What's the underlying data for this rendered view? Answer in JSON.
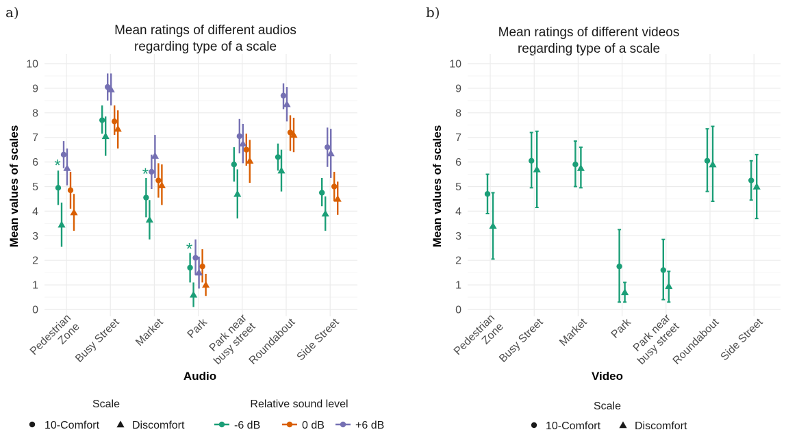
{
  "panel_labels": [
    "a)",
    "b)"
  ],
  "colors": {
    "-6 dB": "#1b9e77",
    "0 dB": "#d95f02",
    "+6 dB": "#7570b3",
    "single": "#1b9e77",
    "grid": "#ebebeb"
  },
  "chart_data": [
    {
      "type": "scatter",
      "title_line1": "Mean ratings of different audios",
      "title_line2": "regarding type of a scale",
      "xlabel": "Audio",
      "ylabel": "Mean values of scales",
      "ylim": [
        0,
        10
      ],
      "yticks": [
        "0",
        "1",
        "2",
        "3",
        "4",
        "5",
        "6",
        "7",
        "8",
        "9",
        "10"
      ],
      "categories": [
        [
          "Pedestrian",
          "Zone"
        ],
        [
          "Busy Street"
        ],
        [
          "Market"
        ],
        [
          "Park"
        ],
        [
          "Park near",
          "busy street"
        ],
        [
          "Roundabout"
        ],
        [
          "Side Street"
        ]
      ],
      "legend_scale_title": "Scale",
      "legend_scale_items": [
        "10-Comfort",
        "Discomfort"
      ],
      "legend_level_title": "Relative sound level",
      "legend_level_items": [
        "-6 dB",
        "0 dB",
        "+6 dB"
      ],
      "significance_marker": "*",
      "significance_categories": [
        0,
        2,
        3
      ],
      "points": [
        {
          "cat": 0,
          "level": "-6 dB",
          "scale": "10-Comfort",
          "mean": 4.95,
          "lo": 4.25,
          "hi": 5.65
        },
        {
          "cat": 0,
          "level": "-6 dB",
          "scale": "Discomfort",
          "mean": 3.45,
          "lo": 2.55,
          "hi": 4.35
        },
        {
          "cat": 0,
          "level": "0 dB",
          "scale": "10-Comfort",
          "mean": 4.85,
          "lo": 4.1,
          "hi": 5.6
        },
        {
          "cat": 0,
          "level": "0 dB",
          "scale": "Discomfort",
          "mean": 3.95,
          "lo": 3.2,
          "hi": 4.7
        },
        {
          "cat": 0,
          "level": "+6 dB",
          "scale": "10-Comfort",
          "mean": 6.3,
          "lo": 5.75,
          "hi": 6.85
        },
        {
          "cat": 0,
          "level": "+6 dB",
          "scale": "Discomfort",
          "mean": 5.75,
          "lo": 5.05,
          "hi": 6.55
        },
        {
          "cat": 1,
          "level": "-6 dB",
          "scale": "10-Comfort",
          "mean": 7.7,
          "lo": 7.15,
          "hi": 8.3
        },
        {
          "cat": 1,
          "level": "-6 dB",
          "scale": "Discomfort",
          "mean": 7.05,
          "lo": 6.25,
          "hi": 7.85
        },
        {
          "cat": 1,
          "level": "0 dB",
          "scale": "10-Comfort",
          "mean": 7.65,
          "lo": 7.1,
          "hi": 8.3
        },
        {
          "cat": 1,
          "level": "0 dB",
          "scale": "Discomfort",
          "mean": 7.35,
          "lo": 6.55,
          "hi": 8.1
        },
        {
          "cat": 1,
          "level": "+6 dB",
          "scale": "10-Comfort",
          "mean": 9.05,
          "lo": 8.5,
          "hi": 9.6
        },
        {
          "cat": 1,
          "level": "+6 dB",
          "scale": "Discomfort",
          "mean": 8.95,
          "lo": 8.3,
          "hi": 9.6
        },
        {
          "cat": 2,
          "level": "-6 dB",
          "scale": "10-Comfort",
          "mean": 4.55,
          "lo": 3.75,
          "hi": 5.35
        },
        {
          "cat": 2,
          "level": "-6 dB",
          "scale": "Discomfort",
          "mean": 3.65,
          "lo": 2.85,
          "hi": 4.45
        },
        {
          "cat": 2,
          "level": "0 dB",
          "scale": "10-Comfort",
          "mean": 5.25,
          "lo": 4.55,
          "hi": 5.95
        },
        {
          "cat": 2,
          "level": "0 dB",
          "scale": "Discomfort",
          "mean": 5.05,
          "lo": 4.25,
          "hi": 5.9
        },
        {
          "cat": 2,
          "level": "+6 dB",
          "scale": "10-Comfort",
          "mean": 5.6,
          "lo": 4.9,
          "hi": 6.3
        },
        {
          "cat": 2,
          "level": "+6 dB",
          "scale": "Discomfort",
          "mean": 6.25,
          "lo": 5.35,
          "hi": 7.1
        },
        {
          "cat": 3,
          "level": "-6 dB",
          "scale": "10-Comfort",
          "mean": 1.7,
          "lo": 1.1,
          "hi": 2.3
        },
        {
          "cat": 3,
          "level": "-6 dB",
          "scale": "Discomfort",
          "mean": 0.6,
          "lo": 0.1,
          "hi": 1.1
        },
        {
          "cat": 3,
          "level": "0 dB",
          "scale": "10-Comfort",
          "mean": 1.75,
          "lo": 1.1,
          "hi": 2.45
        },
        {
          "cat": 3,
          "level": "0 dB",
          "scale": "Discomfort",
          "mean": 1.0,
          "lo": 0.55,
          "hi": 1.45
        },
        {
          "cat": 3,
          "level": "+6 dB",
          "scale": "10-Comfort",
          "mean": 2.1,
          "lo": 1.4,
          "hi": 2.85
        },
        {
          "cat": 3,
          "level": "+6 dB",
          "scale": "Discomfort",
          "mean": 1.5,
          "lo": 0.85,
          "hi": 2.15
        },
        {
          "cat": 4,
          "level": "-6 dB",
          "scale": "10-Comfort",
          "mean": 5.9,
          "lo": 5.2,
          "hi": 6.6
        },
        {
          "cat": 4,
          "level": "-6 dB",
          "scale": "Discomfort",
          "mean": 4.7,
          "lo": 3.7,
          "hi": 5.7
        },
        {
          "cat": 4,
          "level": "0 dB",
          "scale": "10-Comfort",
          "mean": 6.5,
          "lo": 5.85,
          "hi": 7.15
        },
        {
          "cat": 4,
          "level": "0 dB",
          "scale": "Discomfort",
          "mean": 6.05,
          "lo": 5.15,
          "hi": 6.9
        },
        {
          "cat": 4,
          "level": "+6 dB",
          "scale": "10-Comfort",
          "mean": 7.05,
          "lo": 6.35,
          "hi": 7.75
        },
        {
          "cat": 4,
          "level": "+6 dB",
          "scale": "Discomfort",
          "mean": 6.75,
          "lo": 5.95,
          "hi": 7.55
        },
        {
          "cat": 5,
          "level": "-6 dB",
          "scale": "10-Comfort",
          "mean": 6.2,
          "lo": 5.65,
          "hi": 6.75
        },
        {
          "cat": 5,
          "level": "-6 dB",
          "scale": "Discomfort",
          "mean": 5.65,
          "lo": 4.8,
          "hi": 6.5
        },
        {
          "cat": 5,
          "level": "0 dB",
          "scale": "10-Comfort",
          "mean": 7.2,
          "lo": 6.45,
          "hi": 7.9
        },
        {
          "cat": 5,
          "level": "0 dB",
          "scale": "Discomfort",
          "mean": 7.1,
          "lo": 6.4,
          "hi": 7.8
        },
        {
          "cat": 5,
          "level": "+6 dB",
          "scale": "10-Comfort",
          "mean": 8.7,
          "lo": 8.15,
          "hi": 9.2
        },
        {
          "cat": 5,
          "level": "+6 dB",
          "scale": "Discomfort",
          "mean": 8.35,
          "lo": 7.65,
          "hi": 9.05
        },
        {
          "cat": 6,
          "level": "-6 dB",
          "scale": "10-Comfort",
          "mean": 4.75,
          "lo": 4.2,
          "hi": 5.35
        },
        {
          "cat": 6,
          "level": "-6 dB",
          "scale": "Discomfort",
          "mean": 3.9,
          "lo": 3.2,
          "hi": 4.6
        },
        {
          "cat": 6,
          "level": "0 dB",
          "scale": "10-Comfort",
          "mean": 5.0,
          "lo": 4.4,
          "hi": 5.6
        },
        {
          "cat": 6,
          "level": "0 dB",
          "scale": "Discomfort",
          "mean": 4.5,
          "lo": 3.85,
          "hi": 5.2
        },
        {
          "cat": 6,
          "level": "+6 dB",
          "scale": "10-Comfort",
          "mean": 6.6,
          "lo": 5.8,
          "hi": 7.4
        },
        {
          "cat": 6,
          "level": "+6 dB",
          "scale": "Discomfort",
          "mean": 6.35,
          "lo": 5.35,
          "hi": 7.35
        }
      ]
    },
    {
      "type": "scatter",
      "title_line1": "Mean ratings of different videos",
      "title_line2": "regarding type of a scale",
      "xlabel": "Video",
      "ylabel": "Mean values of scales",
      "ylim": [
        0,
        10
      ],
      "yticks": [
        "0",
        "1",
        "2",
        "3",
        "4",
        "5",
        "6",
        "7",
        "8",
        "9",
        "10"
      ],
      "categories": [
        [
          "Pedestrian",
          "Zone"
        ],
        [
          "Busy Street"
        ],
        [
          "Market"
        ],
        [
          "Park"
        ],
        [
          "Park near",
          "busy street"
        ],
        [
          "Roundabout"
        ],
        [
          "Side Street"
        ]
      ],
      "legend_scale_title": "Scale",
      "legend_scale_items": [
        "10-Comfort",
        "Discomfort"
      ],
      "points": [
        {
          "cat": 0,
          "scale": "10-Comfort",
          "mean": 4.7,
          "lo": 3.9,
          "hi": 5.5
        },
        {
          "cat": 0,
          "scale": "Discomfort",
          "mean": 3.4,
          "lo": 2.05,
          "hi": 4.75
        },
        {
          "cat": 1,
          "scale": "10-Comfort",
          "mean": 6.05,
          "lo": 4.95,
          "hi": 7.2
        },
        {
          "cat": 1,
          "scale": "Discomfort",
          "mean": 5.7,
          "lo": 4.15,
          "hi": 7.25
        },
        {
          "cat": 2,
          "scale": "10-Comfort",
          "mean": 5.9,
          "lo": 5.0,
          "hi": 6.85
        },
        {
          "cat": 2,
          "scale": "Discomfort",
          "mean": 5.75,
          "lo": 4.95,
          "hi": 6.6
        },
        {
          "cat": 3,
          "scale": "10-Comfort",
          "mean": 1.75,
          "lo": 0.3,
          "hi": 3.25
        },
        {
          "cat": 3,
          "scale": "Discomfort",
          "mean": 0.7,
          "lo": 0.3,
          "hi": 1.1
        },
        {
          "cat": 4,
          "scale": "10-Comfort",
          "mean": 1.6,
          "lo": 0.4,
          "hi": 2.85
        },
        {
          "cat": 4,
          "scale": "Discomfort",
          "mean": 0.95,
          "lo": 0.3,
          "hi": 1.55
        },
        {
          "cat": 5,
          "scale": "10-Comfort",
          "mean": 6.05,
          "lo": 4.8,
          "hi": 7.35
        },
        {
          "cat": 5,
          "scale": "Discomfort",
          "mean": 5.9,
          "lo": 4.4,
          "hi": 7.45
        },
        {
          "cat": 6,
          "scale": "10-Comfort",
          "mean": 5.25,
          "lo": 4.45,
          "hi": 6.05
        },
        {
          "cat": 6,
          "scale": "Discomfort",
          "mean": 5.0,
          "lo": 3.7,
          "hi": 6.3
        }
      ]
    }
  ]
}
